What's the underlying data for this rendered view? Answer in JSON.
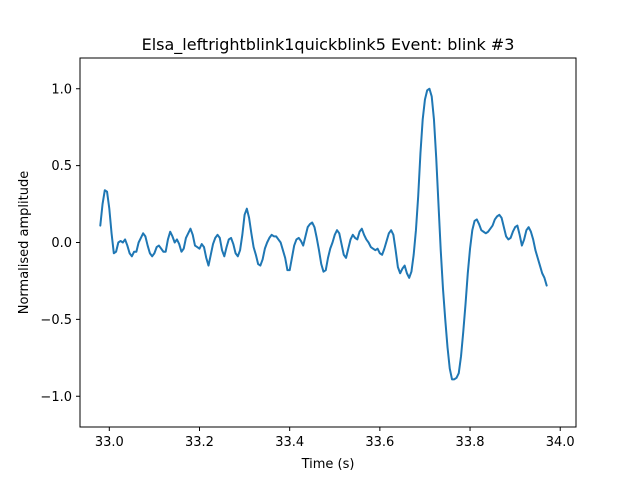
{
  "chart_data": {
    "type": "line",
    "title": "Elsa_leftrightblink1quickblink5 Event: blink #3",
    "xlabel": "Time (s)",
    "ylabel": "Normalised amplitude",
    "xlim": [
      32.935,
      34.035
    ],
    "ylim": [
      -1.2,
      1.2
    ],
    "xticks": [
      33.0,
      33.2,
      33.4,
      33.6,
      33.8,
      34.0
    ],
    "xtick_labels": [
      "33.0",
      "33.2",
      "33.4",
      "33.6",
      "33.8",
      "34.0"
    ],
    "yticks": [
      -1.0,
      -0.5,
      0.0,
      0.5,
      1.0
    ],
    "ytick_labels": [
      "−1.0",
      "−0.5",
      "0.0",
      "0.5",
      "1.0"
    ],
    "grid": false,
    "series_color": "#1f77b4",
    "series": [
      {
        "values": [
          [
            32.98,
            0.11
          ],
          [
            32.985,
            0.25
          ],
          [
            32.99,
            0.34
          ],
          [
            32.995,
            0.33
          ],
          [
            33.0,
            0.22
          ],
          [
            33.005,
            0.06
          ],
          [
            33.01,
            -0.07
          ],
          [
            33.015,
            -0.06
          ],
          [
            33.02,
            0.0
          ],
          [
            33.025,
            0.01
          ],
          [
            33.03,
            0.0
          ],
          [
            33.035,
            0.02
          ],
          [
            33.04,
            -0.02
          ],
          [
            33.045,
            -0.07
          ],
          [
            33.05,
            -0.09
          ],
          [
            33.055,
            -0.06
          ],
          [
            33.06,
            -0.06
          ],
          [
            33.065,
            0.0
          ],
          [
            33.07,
            0.03
          ],
          [
            33.075,
            0.06
          ],
          [
            33.08,
            0.04
          ],
          [
            33.085,
            -0.02
          ],
          [
            33.09,
            -0.07
          ],
          [
            33.095,
            -0.09
          ],
          [
            33.1,
            -0.07
          ],
          [
            33.105,
            -0.03
          ],
          [
            33.11,
            -0.02
          ],
          [
            33.115,
            -0.04
          ],
          [
            33.12,
            -0.06
          ],
          [
            33.125,
            -0.06
          ],
          [
            33.13,
            0.02
          ],
          [
            33.135,
            0.07
          ],
          [
            33.14,
            0.04
          ],
          [
            33.145,
            0.0
          ],
          [
            33.15,
            0.02
          ],
          [
            33.155,
            -0.01
          ],
          [
            33.16,
            -0.06
          ],
          [
            33.165,
            -0.04
          ],
          [
            33.17,
            0.03
          ],
          [
            33.175,
            0.06
          ],
          [
            33.18,
            0.09
          ],
          [
            33.185,
            0.05
          ],
          [
            33.19,
            -0.02
          ],
          [
            33.195,
            -0.03
          ],
          [
            33.2,
            -0.04
          ],
          [
            33.205,
            -0.01
          ],
          [
            33.21,
            -0.03
          ],
          [
            33.215,
            -0.1
          ],
          [
            33.22,
            -0.15
          ],
          [
            33.225,
            -0.08
          ],
          [
            33.23,
            -0.01
          ],
          [
            33.235,
            0.03
          ],
          [
            33.24,
            0.05
          ],
          [
            33.245,
            0.03
          ],
          [
            33.25,
            -0.05
          ],
          [
            33.255,
            -0.09
          ],
          [
            33.26,
            -0.03
          ],
          [
            33.265,
            0.02
          ],
          [
            33.27,
            0.03
          ],
          [
            33.275,
            -0.01
          ],
          [
            33.28,
            -0.07
          ],
          [
            33.285,
            -0.09
          ],
          [
            33.29,
            -0.05
          ],
          [
            33.295,
            0.05
          ],
          [
            33.3,
            0.18
          ],
          [
            33.305,
            0.22
          ],
          [
            33.31,
            0.16
          ],
          [
            33.315,
            0.06
          ],
          [
            33.32,
            -0.03
          ],
          [
            33.325,
            -0.08
          ],
          [
            33.33,
            -0.14
          ],
          [
            33.335,
            -0.15
          ],
          [
            33.34,
            -0.11
          ],
          [
            33.345,
            -0.04
          ],
          [
            33.35,
            0.0
          ],
          [
            33.355,
            0.03
          ],
          [
            33.36,
            0.05
          ],
          [
            33.365,
            0.04
          ],
          [
            33.37,
            0.04
          ],
          [
            33.375,
            0.02
          ],
          [
            33.38,
            0.0
          ],
          [
            33.385,
            -0.05
          ],
          [
            33.39,
            -0.1
          ],
          [
            33.395,
            -0.18
          ],
          [
            33.4,
            -0.18
          ],
          [
            33.405,
            -0.1
          ],
          [
            33.41,
            -0.02
          ],
          [
            33.415,
            0.02
          ],
          [
            33.42,
            0.03
          ],
          [
            33.425,
            0.01
          ],
          [
            33.43,
            -0.02
          ],
          [
            33.435,
            0.04
          ],
          [
            33.44,
            0.1
          ],
          [
            33.445,
            0.12
          ],
          [
            33.45,
            0.13
          ],
          [
            33.455,
            0.1
          ],
          [
            33.46,
            0.03
          ],
          [
            33.465,
            -0.05
          ],
          [
            33.47,
            -0.14
          ],
          [
            33.475,
            -0.19
          ],
          [
            33.48,
            -0.18
          ],
          [
            33.485,
            -0.1
          ],
          [
            33.49,
            -0.04
          ],
          [
            33.495,
            0.0
          ],
          [
            33.5,
            0.05
          ],
          [
            33.505,
            0.08
          ],
          [
            33.51,
            0.06
          ],
          [
            33.515,
            -0.01
          ],
          [
            33.52,
            -0.08
          ],
          [
            33.525,
            -0.1
          ],
          [
            33.53,
            -0.04
          ],
          [
            33.535,
            0.02
          ],
          [
            33.54,
            0.05
          ],
          [
            33.545,
            0.03
          ],
          [
            33.55,
            0.02
          ],
          [
            33.555,
            0.07
          ],
          [
            33.56,
            0.09
          ],
          [
            33.565,
            0.05
          ],
          [
            33.57,
            0.02
          ],
          [
            33.575,
            0.0
          ],
          [
            33.58,
            -0.03
          ],
          [
            33.585,
            -0.04
          ],
          [
            33.59,
            -0.05
          ],
          [
            33.595,
            -0.04
          ],
          [
            33.6,
            -0.07
          ],
          [
            33.605,
            -0.08
          ],
          [
            33.61,
            -0.04
          ],
          [
            33.615,
            0.01
          ],
          [
            33.62,
            0.06
          ],
          [
            33.625,
            0.08
          ],
          [
            33.63,
            0.05
          ],
          [
            33.635,
            -0.05
          ],
          [
            33.64,
            -0.16
          ],
          [
            33.645,
            -0.2
          ],
          [
            33.65,
            -0.17
          ],
          [
            33.655,
            -0.15
          ],
          [
            33.66,
            -0.2
          ],
          [
            33.665,
            -0.23
          ],
          [
            33.67,
            -0.19
          ],
          [
            33.675,
            -0.08
          ],
          [
            33.68,
            0.08
          ],
          [
            33.685,
            0.3
          ],
          [
            33.69,
            0.58
          ],
          [
            33.695,
            0.8
          ],
          [
            33.7,
            0.93
          ],
          [
            33.705,
            0.99
          ],
          [
            33.71,
            1.0
          ],
          [
            33.715,
            0.95
          ],
          [
            33.72,
            0.8
          ],
          [
            33.725,
            0.55
          ],
          [
            33.73,
            0.25
          ],
          [
            33.735,
            -0.05
          ],
          [
            33.74,
            -0.3
          ],
          [
            33.745,
            -0.5
          ],
          [
            33.75,
            -0.68
          ],
          [
            33.755,
            -0.82
          ],
          [
            33.76,
            -0.89
          ],
          [
            33.765,
            -0.89
          ],
          [
            33.77,
            -0.88
          ],
          [
            33.775,
            -0.85
          ],
          [
            33.78,
            -0.74
          ],
          [
            33.785,
            -0.58
          ],
          [
            33.79,
            -0.4
          ],
          [
            33.795,
            -0.2
          ],
          [
            33.8,
            -0.04
          ],
          [
            33.805,
            0.08
          ],
          [
            33.81,
            0.14
          ],
          [
            33.815,
            0.15
          ],
          [
            33.82,
            0.12
          ],
          [
            33.825,
            0.08
          ],
          [
            33.83,
            0.07
          ],
          [
            33.835,
            0.06
          ],
          [
            33.84,
            0.07
          ],
          [
            33.845,
            0.09
          ],
          [
            33.85,
            0.11
          ],
          [
            33.855,
            0.15
          ],
          [
            33.86,
            0.17
          ],
          [
            33.865,
            0.18
          ],
          [
            33.87,
            0.16
          ],
          [
            33.875,
            0.1
          ],
          [
            33.88,
            0.04
          ],
          [
            33.885,
            0.02
          ],
          [
            33.89,
            0.03
          ],
          [
            33.895,
            0.07
          ],
          [
            33.9,
            0.1
          ],
          [
            33.905,
            0.11
          ],
          [
            33.91,
            0.05
          ],
          [
            33.915,
            -0.02
          ],
          [
            33.92,
            0.02
          ],
          [
            33.925,
            0.08
          ],
          [
            33.93,
            0.1
          ],
          [
            33.935,
            0.07
          ],
          [
            33.94,
            0.02
          ],
          [
            33.945,
            -0.05
          ],
          [
            33.95,
            -0.1
          ],
          [
            33.955,
            -0.15
          ],
          [
            33.96,
            -0.2
          ],
          [
            33.965,
            -0.23
          ],
          [
            33.97,
            -0.28
          ]
        ]
      }
    ]
  }
}
